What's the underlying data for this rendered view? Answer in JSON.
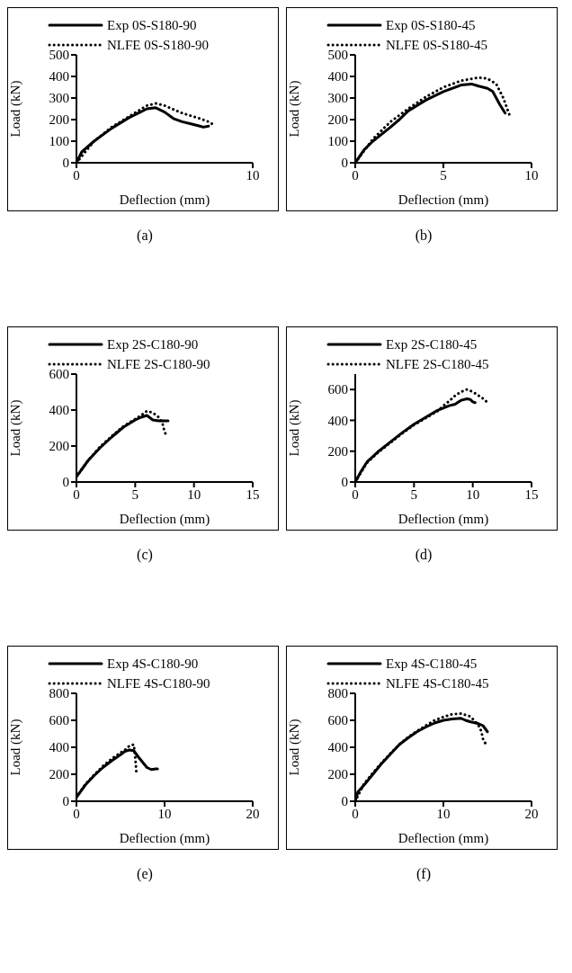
{
  "chart_data": [
    {
      "type": "line",
      "title": "(a)",
      "xlabel": "Deflection (mm)",
      "ylabel": "Load (kN)",
      "xlim": [
        0,
        10
      ],
      "xticks": [
        0,
        10
      ],
      "ylim": [
        0,
        500
      ],
      "yticks": [
        0,
        100,
        200,
        300,
        400,
        500
      ],
      "legend": "top",
      "series": [
        {
          "name": "Exp 0S-S180-90",
          "color": "#000000",
          "line_style": "solid",
          "x": [
            0,
            0.3,
            1,
            2,
            3,
            3.5,
            4,
            4.5,
            5,
            5.5,
            6,
            6.5,
            7,
            7.2,
            7.5
          ],
          "values": [
            0,
            50,
            100,
            160,
            210,
            230,
            250,
            255,
            235,
            205,
            190,
            180,
            170,
            165,
            170
          ]
        },
        {
          "name": "NLFE 0S-S180-90",
          "color": "#000000",
          "line_style": "dotted",
          "x": [
            0,
            1,
            2,
            3,
            4,
            4.5,
            5,
            6,
            7,
            7.5,
            7.7
          ],
          "values": [
            0,
            100,
            165,
            215,
            265,
            275,
            265,
            230,
            205,
            190,
            180
          ]
        }
      ]
    },
    {
      "type": "line",
      "title": "(b)",
      "xlabel": "Deflection (mm)",
      "ylabel": "Load (kN)",
      "xlim": [
        0,
        10
      ],
      "xticks": [
        0,
        5,
        10
      ],
      "ylim": [
        0,
        500
      ],
      "yticks": [
        0,
        100,
        200,
        300,
        400,
        500
      ],
      "legend": "top",
      "series": [
        {
          "name": "Exp 0S-S180-45",
          "color": "#000000",
          "line_style": "solid",
          "x": [
            0,
            0.5,
            1,
            2,
            2.5,
            3,
            4,
            5,
            6,
            6.6,
            7,
            7.5,
            7.8,
            8.2,
            8.5
          ],
          "values": [
            0,
            60,
            100,
            165,
            200,
            240,
            290,
            330,
            360,
            365,
            355,
            345,
            330,
            270,
            230
          ]
        },
        {
          "name": "NLFE 0S-S180-45",
          "color": "#000000",
          "line_style": "dotted",
          "x": [
            0,
            1,
            2,
            3,
            4,
            5,
            6,
            7,
            7.5,
            8,
            8.4,
            8.8
          ],
          "values": [
            0,
            110,
            190,
            250,
            305,
            350,
            380,
            395,
            390,
            365,
            300,
            210
          ]
        }
      ]
    },
    {
      "type": "line",
      "title": "(c)",
      "xlabel": "Deflection (mm)",
      "ylabel": "Load (kN)",
      "xlim": [
        0,
        15
      ],
      "xticks": [
        0,
        5,
        10,
        15
      ],
      "ylim": [
        0,
        600
      ],
      "yticks": [
        0,
        200,
        400,
        600
      ],
      "legend": "top",
      "series": [
        {
          "name": "Exp 2S-C180-90",
          "color": "#000000",
          "line_style": "solid",
          "x": [
            0,
            1,
            2,
            3,
            4,
            5,
            5.5,
            6,
            6.5,
            7,
            7.8
          ],
          "values": [
            30,
            120,
            190,
            250,
            305,
            345,
            360,
            370,
            345,
            340,
            340
          ]
        },
        {
          "name": "NLFE 2S-C180-90",
          "color": "#000000",
          "line_style": "dotted",
          "x": [
            0,
            1,
            2,
            3,
            4,
            5,
            5.5,
            6,
            6.5,
            7,
            7.3,
            7.5,
            7.7
          ],
          "values": [
            30,
            120,
            195,
            255,
            310,
            350,
            370,
            395,
            385,
            360,
            330,
            280,
            250
          ]
        }
      ]
    },
    {
      "type": "line",
      "title": "(d)",
      "xlabel": "Deflection (mm)",
      "ylabel": "Load (kN)",
      "xlim": [
        0,
        15
      ],
      "xticks": [
        0,
        5,
        10,
        15
      ],
      "ylim": [
        0,
        700
      ],
      "yticks": [
        0,
        200,
        400,
        600
      ],
      "legend": "top",
      "series": [
        {
          "name": "Exp 2S-C180-45",
          "color": "#000000",
          "line_style": "solid",
          "x": [
            0,
            0.5,
            1,
            2,
            3,
            4,
            5,
            6,
            7,
            8,
            8.5,
            9,
            9.5,
            9.8,
            10,
            10.2
          ],
          "values": [
            0,
            70,
            130,
            200,
            260,
            320,
            375,
            420,
            465,
            495,
            505,
            530,
            540,
            535,
            520,
            515
          ]
        },
        {
          "name": "NLFE 2S-C180-45",
          "color": "#000000",
          "line_style": "dotted",
          "x": [
            0,
            1,
            2,
            3,
            4,
            5,
            6,
            7,
            7.5,
            8,
            8.5,
            9,
            9.5,
            10,
            10.5,
            11,
            11.3
          ],
          "values": [
            0,
            125,
            195,
            255,
            315,
            370,
            415,
            460,
            495,
            525,
            560,
            585,
            600,
            585,
            560,
            535,
            510
          ]
        }
      ]
    },
    {
      "type": "line",
      "title": "(e)",
      "xlabel": "Deflection (mm)",
      "ylabel": "Load (kN)",
      "xlim": [
        0,
        20
      ],
      "xticks": [
        0,
        10,
        20
      ],
      "ylim": [
        0,
        800
      ],
      "yticks": [
        0,
        200,
        400,
        600,
        800
      ],
      "legend": "top",
      "series": [
        {
          "name": "Exp 4S-C180-90",
          "color": "#000000",
          "line_style": "solid",
          "x": [
            0,
            1,
            2,
            3,
            4,
            5,
            5.5,
            6,
            6.5,
            7,
            7.5,
            8,
            8.5,
            9,
            9.2
          ],
          "values": [
            30,
            120,
            190,
            250,
            300,
            345,
            370,
            380,
            375,
            330,
            290,
            250,
            235,
            240,
            240
          ]
        },
        {
          "name": "NLFE 4S-C180-90",
          "color": "#000000",
          "line_style": "dotted",
          "x": [
            0,
            1,
            2,
            3,
            4,
            5,
            5.5,
            6,
            6.5,
            6.6,
            6.7,
            6.8
          ],
          "values": [
            30,
            125,
            195,
            260,
            315,
            360,
            380,
            410,
            420,
            370,
            300,
            210
          ]
        }
      ]
    },
    {
      "type": "line",
      "title": "(f)",
      "xlabel": "Deflection (mm)",
      "ylabel": "Load (kN)",
      "xlim": [
        0,
        20
      ],
      "xticks": [
        0,
        10,
        20
      ],
      "ylim": [
        0,
        800
      ],
      "yticks": [
        0,
        200,
        400,
        600,
        800
      ],
      "legend": "top",
      "series": [
        {
          "name": "Exp 4S-C180-45",
          "color": "#000000",
          "line_style": "solid",
          "x": [
            0,
            0.3,
            1,
            2,
            3,
            4,
            5,
            6,
            7,
            8,
            9,
            10,
            11,
            12,
            12.5,
            13,
            14,
            14.5,
            15
          ],
          "values": [
            0,
            70,
            120,
            200,
            280,
            350,
            420,
            470,
            515,
            550,
            580,
            600,
            610,
            615,
            600,
            590,
            575,
            560,
            515
          ]
        },
        {
          "name": "NLFE 4S-C180-45",
          "color": "#000000",
          "line_style": "dotted",
          "x": [
            0,
            1,
            2,
            3,
            4,
            5,
            6,
            7,
            8,
            9,
            10,
            11,
            12,
            13,
            13.5,
            14,
            14.3,
            14.5,
            14.8
          ],
          "values": [
            0,
            130,
            210,
            285,
            355,
            420,
            475,
            520,
            560,
            600,
            625,
            645,
            650,
            630,
            600,
            560,
            520,
            460,
            425
          ]
        }
      ]
    }
  ]
}
